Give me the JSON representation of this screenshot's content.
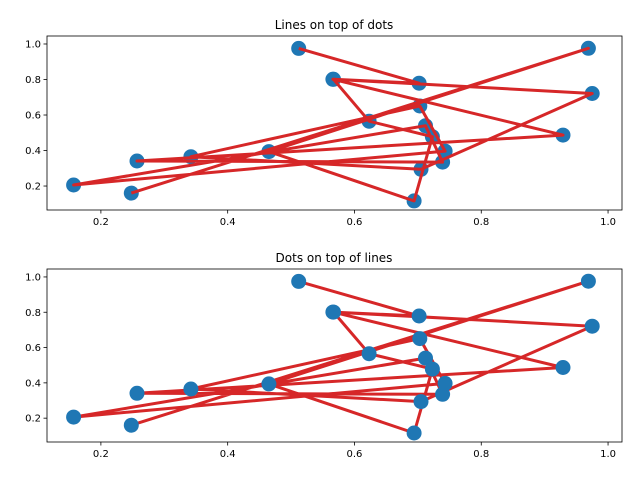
{
  "chart_data": [
    {
      "type": "line",
      "title": "Lines on top of dots",
      "xlim": [
        0.115,
        1.022
      ],
      "ylim": [
        0.065,
        1.045
      ],
      "xticks": [
        "0.2",
        "0.4",
        "0.6",
        "0.8",
        "1.0"
      ],
      "yticks": [
        "0.2",
        "0.4",
        "0.6",
        "0.8",
        "1.0"
      ],
      "grid": false,
      "layer_order": "lines-over-markers",
      "line_color": "#d62728",
      "marker_color": "#1f77b4",
      "x": [
        0.512,
        0.702,
        0.566,
        0.929,
        0.257,
        0.739,
        0.712,
        0.157,
        0.743,
        0.703,
        0.342,
        0.705,
        0.975,
        0.567,
        0.623,
        0.723,
        0.694,
        0.465,
        0.969,
        0.248
      ],
      "y": [
        0.975,
        0.779,
        0.801,
        0.487,
        0.341,
        0.335,
        0.54,
        0.206,
        0.397,
        0.651,
        0.365,
        0.294,
        0.721,
        0.801,
        0.565,
        0.478,
        0.116,
        0.394,
        0.976,
        0.16
      ]
    },
    {
      "type": "line",
      "title": "Dots on top of lines",
      "xlim": [
        0.115,
        1.022
      ],
      "ylim": [
        0.065,
        1.045
      ],
      "xticks": [
        "0.2",
        "0.4",
        "0.6",
        "0.8",
        "1.0"
      ],
      "yticks": [
        "0.2",
        "0.4",
        "0.6",
        "0.8",
        "1.0"
      ],
      "grid": false,
      "layer_order": "markers-over-lines",
      "line_color": "#d62728",
      "marker_color": "#1f77b4",
      "x": [
        0.512,
        0.702,
        0.566,
        0.929,
        0.257,
        0.739,
        0.712,
        0.157,
        0.743,
        0.703,
        0.342,
        0.705,
        0.975,
        0.567,
        0.623,
        0.723,
        0.694,
        0.465,
        0.969,
        0.248
      ],
      "y": [
        0.975,
        0.779,
        0.801,
        0.487,
        0.341,
        0.335,
        0.54,
        0.206,
        0.397,
        0.651,
        0.365,
        0.294,
        0.721,
        0.801,
        0.565,
        0.478,
        0.116,
        0.394,
        0.976,
        0.16
      ]
    }
  ]
}
